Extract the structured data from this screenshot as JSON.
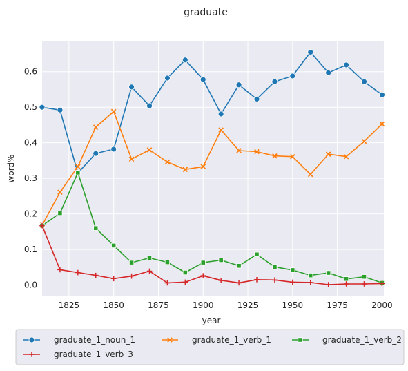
{
  "chart_data": {
    "type": "line",
    "title": "graduate",
    "xlabel": "year",
    "ylabel": "word%",
    "xlim": [
      1810,
      2001
    ],
    "ylim": [
      -0.032,
      0.685
    ],
    "x_ticks": [
      1825,
      1850,
      1875,
      1900,
      1925,
      1950,
      1975,
      2000
    ],
    "y_ticks": [
      0.0,
      0.1,
      0.2,
      0.3,
      0.4,
      0.5,
      0.6
    ],
    "grid": true,
    "legend_placement": "bottom",
    "x": [
      1810,
      1820,
      1830,
      1840,
      1850,
      1860,
      1870,
      1880,
      1890,
      1900,
      1910,
      1920,
      1930,
      1940,
      1950,
      1960,
      1970,
      1980,
      1990,
      2000
    ],
    "series": [
      {
        "name": "graduate_1_noun_1",
        "color": "#1f77b4",
        "marker": "circle",
        "values": [
          0.5,
          0.492,
          0.315,
          0.37,
          0.382,
          0.557,
          0.504,
          0.582,
          0.633,
          0.578,
          0.481,
          0.563,
          0.523,
          0.572,
          0.588,
          0.655,
          0.597,
          0.619,
          0.572,
          0.535
        ]
      },
      {
        "name": "graduate_1_verb_1",
        "color": "#ff7f0e",
        "marker": "x",
        "values": [
          0.168,
          0.261,
          0.333,
          0.444,
          0.488,
          0.354,
          0.38,
          0.346,
          0.325,
          0.333,
          0.436,
          0.378,
          0.375,
          0.363,
          0.361,
          0.311,
          0.368,
          0.361,
          0.404,
          0.453
        ]
      },
      {
        "name": "graduate_1_verb_2",
        "color": "#2ca02c",
        "marker": "square",
        "values": [
          0.167,
          0.202,
          0.316,
          0.16,
          0.111,
          0.063,
          0.076,
          0.064,
          0.035,
          0.063,
          0.07,
          0.054,
          0.086,
          0.051,
          0.042,
          0.027,
          0.034,
          0.017,
          0.023,
          0.006
        ]
      },
      {
        "name": "graduate_1_verb_3",
        "color": "#d62728",
        "marker": "plus",
        "values": [
          0.167,
          0.043,
          0.035,
          0.027,
          0.018,
          0.025,
          0.039,
          0.006,
          0.008,
          0.026,
          0.013,
          0.006,
          0.015,
          0.014,
          0.008,
          0.007,
          0.001,
          0.003,
          0.003,
          0.004
        ]
      }
    ]
  }
}
